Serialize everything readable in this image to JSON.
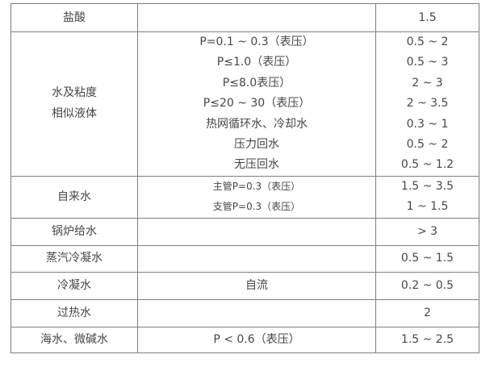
{
  "page": {
    "background_color": "#ffffff"
  },
  "table": {
    "border_color": "#7f7f7f",
    "text_color": "#474747",
    "columns": [
      "medium",
      "condition",
      "velocity"
    ],
    "rows": [
      {
        "medium": [
          "盐酸"
        ],
        "conditions": [],
        "values": [
          "1.5"
        ]
      },
      {
        "medium": [
          "水及粘度",
          "相似液体"
        ],
        "conditions": [
          "P=0.1 ~ 0.3（表压）",
          "P≤1.0（表压）",
          "P≤8.0表压）",
          "P≤20 ~ 30（表压）",
          "热网循环水、冷却水",
          "压力回水",
          "无压回水"
        ],
        "values": [
          "0.5 ~ 2",
          "0.5 ~ 3",
          "2 ~ 3",
          "2 ~ 3.5",
          "0.3 ~ 1",
          "0.5 ~ 2",
          "0.5 ~ 1.2"
        ]
      },
      {
        "medium": [
          "自来水"
        ],
        "conditions": [
          "主管P=0.3（表压）",
          "支管P=0.3（表压）"
        ],
        "values": [
          "1.5 ~ 3.5",
          "1 ~ 1.5"
        ]
      },
      {
        "medium": [
          "锅炉给水"
        ],
        "conditions": [],
        "values": [
          "> 3"
        ]
      },
      {
        "medium": [
          "蒸汽冷凝水"
        ],
        "conditions": [],
        "values": [
          "0.5 ~ 1.5"
        ]
      },
      {
        "medium": [
          "冷凝水"
        ],
        "conditions": [
          "自流"
        ],
        "values": [
          "0.2 ~ 0.5"
        ]
      },
      {
        "medium": [
          "过热水"
        ],
        "conditions": [],
        "values": [
          "2"
        ]
      },
      {
        "medium": [
          "海水、微碱水"
        ],
        "conditions": [
          "P < 0.6（表压）"
        ],
        "values": [
          "1.5 ~ 2.5"
        ]
      }
    ]
  }
}
